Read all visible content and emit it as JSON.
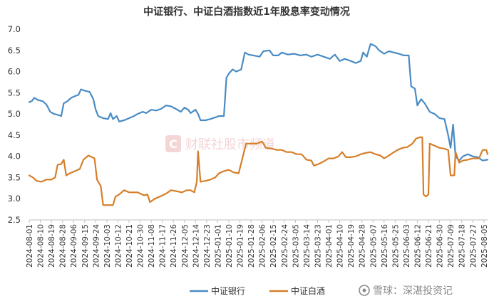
{
  "chart_data": {
    "type": "line",
    "title": "中证银行、中证白酒指数近1年股息率变动情况",
    "xlabel": "",
    "ylabel": "",
    "ylim": [
      2.5,
      7.0
    ],
    "yticks": [
      "2.5",
      "3.0",
      "3.5",
      "4.0",
      "4.5",
      "5.0",
      "5.5",
      "6.0",
      "6.5",
      "7.0"
    ],
    "grid": false,
    "legend": "bottom-center",
    "x_ticks": [
      "2024-08-01",
      "2024-08-10",
      "2024-08-19",
      "2024-08-28",
      "2024-09-06",
      "2024-09-15",
      "2024-09-24",
      "2024-10-03",
      "2024-10-12",
      "2024-10-21",
      "2024-10-30",
      "2024-11-08",
      "2024-11-17",
      "2024-11-26",
      "2024-12-05",
      "2024-12-14",
      "2024-12-23",
      "2025-01-01",
      "2025-01-10",
      "2025-01-19",
      "2025-01-28",
      "2025-02-06",
      "2025-02-15",
      "2025-02-24",
      "2025-03-05",
      "2025-03-14",
      "2025-03-23",
      "2025-04-01",
      "2025-04-10",
      "2025-04-19",
      "2025-04-28",
      "2025-05-07",
      "2025-05-16",
      "2025-05-25",
      "2025-06-03",
      "2025-06-12",
      "2025-06-21",
      "2025-06-30",
      "2025-07-09",
      "2025-07-18",
      "2025-07-27",
      "2025-08-05"
    ],
    "series": [
      {
        "name": "中证银行",
        "color": "#4a8bc4",
        "points": [
          [
            "2024-08-01",
            5.28
          ],
          [
            "2024-08-03",
            5.3
          ],
          [
            "2024-08-05",
            5.38
          ],
          [
            "2024-08-08",
            5.33
          ],
          [
            "2024-08-12",
            5.3
          ],
          [
            "2024-08-15",
            5.22
          ],
          [
            "2024-08-18",
            5.05
          ],
          [
            "2024-08-21",
            5.0
          ],
          [
            "2024-08-24",
            4.98
          ],
          [
            "2024-08-27",
            4.95
          ],
          [
            "2024-08-29",
            5.25
          ],
          [
            "2024-09-01",
            5.3
          ],
          [
            "2024-09-04",
            5.38
          ],
          [
            "2024-09-07",
            5.42
          ],
          [
            "2024-09-10",
            5.45
          ],
          [
            "2024-09-12",
            5.58
          ],
          [
            "2024-09-15",
            5.55
          ],
          [
            "2024-09-19",
            5.52
          ],
          [
            "2024-09-22",
            5.35
          ],
          [
            "2024-09-24",
            5.1
          ],
          [
            "2024-09-26",
            4.95
          ],
          [
            "2024-09-30",
            4.9
          ],
          [
            "2024-10-04",
            4.88
          ],
          [
            "2024-10-06",
            5.02
          ],
          [
            "2024-10-08",
            4.88
          ],
          [
            "2024-10-11",
            4.95
          ],
          [
            "2024-10-13",
            4.82
          ],
          [
            "2024-10-17",
            4.85
          ],
          [
            "2024-10-21",
            4.9
          ],
          [
            "2024-10-25",
            4.95
          ],
          [
            "2024-10-28",
            5.0
          ],
          [
            "2024-11-01",
            5.05
          ],
          [
            "2024-11-04",
            5.02
          ],
          [
            "2024-11-08",
            5.1
          ],
          [
            "2024-11-12",
            5.08
          ],
          [
            "2024-11-16",
            5.12
          ],
          [
            "2024-11-20",
            5.2
          ],
          [
            "2024-11-24",
            5.18
          ],
          [
            "2024-11-28",
            5.12
          ],
          [
            "2024-12-02",
            5.05
          ],
          [
            "2024-12-05",
            5.15
          ],
          [
            "2024-12-08",
            5.1
          ],
          [
            "2024-12-10",
            5.02
          ],
          [
            "2024-12-14",
            5.1
          ],
          [
            "2024-12-16",
            5.0
          ],
          [
            "2024-12-18",
            4.85
          ],
          [
            "2024-12-22",
            4.85
          ],
          [
            "2024-12-26",
            4.88
          ],
          [
            "2024-12-30",
            4.92
          ],
          [
            "2025-01-02",
            4.95
          ],
          [
            "2025-01-06",
            4.95
          ],
          [
            "2025-01-08",
            5.85
          ],
          [
            "2025-01-10",
            5.95
          ],
          [
            "2025-01-13",
            6.05
          ],
          [
            "2025-01-16",
            6.0
          ],
          [
            "2025-01-20",
            6.05
          ],
          [
            "2025-01-23",
            6.45
          ],
          [
            "2025-01-26",
            6.4
          ],
          [
            "2025-01-30",
            6.38
          ],
          [
            "2025-02-04",
            6.35
          ],
          [
            "2025-02-07",
            6.48
          ],
          [
            "2025-02-12",
            6.5
          ],
          [
            "2025-02-15",
            6.38
          ],
          [
            "2025-02-19",
            6.38
          ],
          [
            "2025-02-22",
            6.45
          ],
          [
            "2025-02-27",
            6.4
          ],
          [
            "2025-03-04",
            6.42
          ],
          [
            "2025-03-09",
            6.38
          ],
          [
            "2025-03-14",
            6.4
          ],
          [
            "2025-03-18",
            6.35
          ],
          [
            "2025-03-23",
            6.4
          ],
          [
            "2025-03-28",
            6.35
          ],
          [
            "2025-04-02",
            6.3
          ],
          [
            "2025-04-06",
            6.4
          ],
          [
            "2025-04-10",
            6.25
          ],
          [
            "2025-04-14",
            6.3
          ],
          [
            "2025-04-19",
            6.25
          ],
          [
            "2025-04-23",
            6.2
          ],
          [
            "2025-04-27",
            6.25
          ],
          [
            "2025-04-29",
            6.45
          ],
          [
            "2025-05-02",
            6.35
          ],
          [
            "2025-05-05",
            6.65
          ],
          [
            "2025-05-09",
            6.6
          ],
          [
            "2025-05-12",
            6.5
          ],
          [
            "2025-05-16",
            6.42
          ],
          [
            "2025-05-20",
            6.48
          ],
          [
            "2025-05-24",
            6.45
          ],
          [
            "2025-05-28",
            6.42
          ],
          [
            "2025-06-01",
            6.38
          ],
          [
            "2025-06-05",
            6.38
          ],
          [
            "2025-06-07",
            5.65
          ],
          [
            "2025-06-10",
            5.6
          ],
          [
            "2025-06-12",
            5.2
          ],
          [
            "2025-06-15",
            5.35
          ],
          [
            "2025-06-18",
            5.25
          ],
          [
            "2025-06-22",
            5.05
          ],
          [
            "2025-06-26",
            5.0
          ],
          [
            "2025-06-30",
            4.9
          ],
          [
            "2025-07-04",
            4.88
          ],
          [
            "2025-07-07",
            4.5
          ],
          [
            "2025-07-09",
            4.2
          ],
          [
            "2025-07-11",
            4.75
          ],
          [
            "2025-07-13",
            4.0
          ],
          [
            "2025-07-16",
            3.9
          ],
          [
            "2025-07-19",
            4.0
          ],
          [
            "2025-07-23",
            4.05
          ],
          [
            "2025-07-27",
            4.0
          ],
          [
            "2025-07-31",
            3.98
          ],
          [
            "2025-08-04",
            3.9
          ],
          [
            "2025-08-08",
            3.92
          ]
        ]
      },
      {
        "name": "中证白酒",
        "color": "#d67f2a",
        "points": [
          [
            "2024-08-01",
            3.55
          ],
          [
            "2024-08-04",
            3.5
          ],
          [
            "2024-08-07",
            3.42
          ],
          [
            "2024-08-11",
            3.4
          ],
          [
            "2024-08-15",
            3.45
          ],
          [
            "2024-08-19",
            3.45
          ],
          [
            "2024-08-22",
            3.5
          ],
          [
            "2024-08-24",
            3.8
          ],
          [
            "2024-08-27",
            3.82
          ],
          [
            "2024-08-29",
            3.92
          ],
          [
            "2024-08-31",
            3.55
          ],
          [
            "2024-09-03",
            3.6
          ],
          [
            "2024-09-07",
            3.65
          ],
          [
            "2024-09-11",
            3.7
          ],
          [
            "2024-09-14",
            3.92
          ],
          [
            "2024-09-18",
            4.02
          ],
          [
            "2024-09-21",
            3.98
          ],
          [
            "2024-09-23",
            3.95
          ],
          [
            "2024-09-25",
            3.45
          ],
          [
            "2024-09-28",
            3.3
          ],
          [
            "2024-09-30",
            2.85
          ],
          [
            "2024-10-03",
            2.85
          ],
          [
            "2024-10-08",
            2.85
          ],
          [
            "2024-10-10",
            3.05
          ],
          [
            "2024-10-13",
            3.1
          ],
          [
            "2024-10-17",
            3.2
          ],
          [
            "2024-10-21",
            3.15
          ],
          [
            "2024-10-25",
            3.15
          ],
          [
            "2024-10-28",
            3.15
          ],
          [
            "2024-11-02",
            3.08
          ],
          [
            "2024-11-05",
            3.1
          ],
          [
            "2024-11-07",
            2.92
          ],
          [
            "2024-11-11",
            3.0
          ],
          [
            "2024-11-15",
            3.05
          ],
          [
            "2024-11-20",
            3.12
          ],
          [
            "2024-11-24",
            3.2
          ],
          [
            "2024-11-28",
            3.18
          ],
          [
            "2024-12-03",
            3.15
          ],
          [
            "2024-12-07",
            3.2
          ],
          [
            "2024-12-10",
            3.2
          ],
          [
            "2024-12-13",
            3.15
          ],
          [
            "2024-12-15",
            3.4
          ],
          [
            "2024-12-16",
            4.12
          ],
          [
            "2024-12-18",
            3.4
          ],
          [
            "2024-12-22",
            3.42
          ],
          [
            "2024-12-26",
            3.45
          ],
          [
            "2024-12-30",
            3.5
          ],
          [
            "2025-01-02",
            3.6
          ],
          [
            "2025-01-06",
            3.65
          ],
          [
            "2025-01-10",
            3.68
          ],
          [
            "2025-01-14",
            3.62
          ],
          [
            "2025-01-18",
            3.6
          ],
          [
            "2025-01-21",
            3.95
          ],
          [
            "2025-01-24",
            4.3
          ],
          [
            "2025-01-28",
            4.3
          ],
          [
            "2025-02-02",
            4.3
          ],
          [
            "2025-02-06",
            4.35
          ],
          [
            "2025-02-09",
            4.2
          ],
          [
            "2025-02-14",
            4.18
          ],
          [
            "2025-02-18",
            4.15
          ],
          [
            "2025-02-22",
            4.15
          ],
          [
            "2025-02-26",
            4.1
          ],
          [
            "2025-03-02",
            4.1
          ],
          [
            "2025-03-06",
            4.05
          ],
          [
            "2025-03-10",
            4.05
          ],
          [
            "2025-03-14",
            3.92
          ],
          [
            "2025-03-18",
            3.9
          ],
          [
            "2025-03-20",
            3.78
          ],
          [
            "2025-03-24",
            3.82
          ],
          [
            "2025-03-28",
            3.88
          ],
          [
            "2025-04-01",
            3.95
          ],
          [
            "2025-04-05",
            3.95
          ],
          [
            "2025-04-09",
            4.0
          ],
          [
            "2025-04-12",
            4.1
          ],
          [
            "2025-04-15",
            3.98
          ],
          [
            "2025-04-19",
            3.98
          ],
          [
            "2025-04-23",
            4.0
          ],
          [
            "2025-04-27",
            4.05
          ],
          [
            "2025-05-01",
            4.08
          ],
          [
            "2025-05-05",
            4.1
          ],
          [
            "2025-05-09",
            4.05
          ],
          [
            "2025-05-13",
            4.02
          ],
          [
            "2025-05-16",
            3.95
          ],
          [
            "2025-05-19",
            4.0
          ],
          [
            "2025-05-23",
            4.08
          ],
          [
            "2025-05-27",
            4.15
          ],
          [
            "2025-05-31",
            4.2
          ],
          [
            "2025-06-04",
            4.22
          ],
          [
            "2025-06-08",
            4.3
          ],
          [
            "2025-06-11",
            4.42
          ],
          [
            "2025-06-14",
            4.45
          ],
          [
            "2025-06-16",
            4.45
          ],
          [
            "2025-06-17",
            3.1
          ],
          [
            "2025-06-19",
            3.05
          ],
          [
            "2025-06-21",
            3.1
          ],
          [
            "2025-06-22",
            4.3
          ],
          [
            "2025-06-26",
            4.25
          ],
          [
            "2025-06-30",
            4.2
          ],
          [
            "2025-07-04",
            4.18
          ],
          [
            "2025-07-07",
            4.15
          ],
          [
            "2025-07-09",
            3.55
          ],
          [
            "2025-07-12",
            3.55
          ],
          [
            "2025-07-13",
            4.1
          ],
          [
            "2025-07-16",
            3.85
          ],
          [
            "2025-07-19",
            3.9
          ],
          [
            "2025-07-23",
            3.92
          ],
          [
            "2025-07-27",
            3.95
          ],
          [
            "2025-08-01",
            3.95
          ],
          [
            "2025-08-04",
            4.15
          ],
          [
            "2025-08-07",
            4.15
          ],
          [
            "2025-08-08",
            4.05
          ]
        ]
      }
    ]
  },
  "watermark": {
    "brand": "财联社股市频道",
    "logo_letter": "C"
  },
  "footer": {
    "source": "雪球：深湛投资记"
  }
}
